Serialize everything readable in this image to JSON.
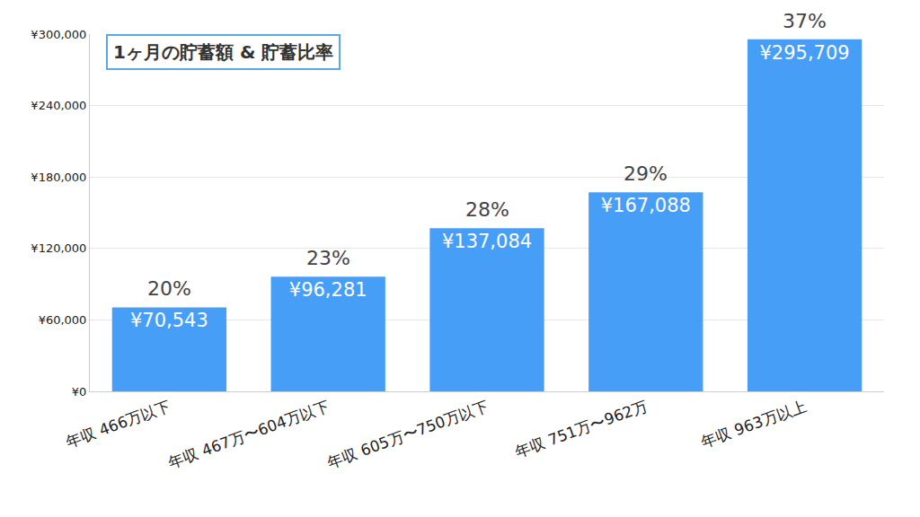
{
  "chart_data": {
    "type": "bar",
    "title": "1ヶ月の貯蓄額 & 貯蓄比率",
    "categories": [
      "年収 466万以下",
      "年収 467万〜604万以下",
      "年収 605万〜750万以下",
      "年収 751万〜962万",
      "年収 963万以上"
    ],
    "values": [
      70543,
      96281,
      137084,
      167088,
      295709
    ],
    "value_labels": [
      "¥70,543",
      "¥96,281",
      "¥137,084",
      "¥167,088",
      "¥295,709"
    ],
    "ratios": [
      20,
      23,
      28,
      29,
      37
    ],
    "ratio_labels": [
      "20%",
      "23%",
      "28%",
      "29%",
      "37%"
    ],
    "color": "#479ef6",
    "ylim": [
      0,
      300000
    ],
    "yticks": [
      {
        "value": 0,
        "label": "¥0"
      },
      {
        "value": 60000,
        "label": "¥60,000"
      },
      {
        "value": 120000,
        "label": "¥120,000"
      },
      {
        "value": 180000,
        "label": "¥180,000"
      },
      {
        "value": 240000,
        "label": "¥240,000"
      },
      {
        "value": 300000,
        "label": "¥300,000"
      }
    ],
    "grid": true,
    "data_labels": true
  }
}
